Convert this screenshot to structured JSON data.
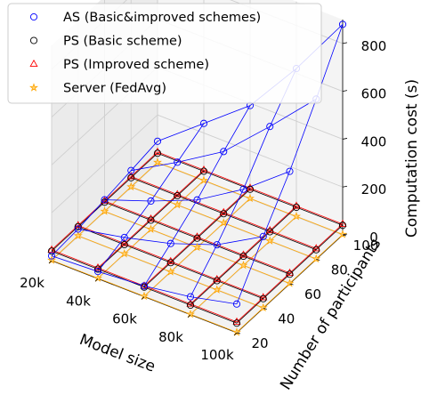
{
  "chart_data": {
    "type": "scatter",
    "projection": "3d",
    "title": "",
    "xlabel": "Model size",
    "ylabel": "Number of participants",
    "zlabel": "Computation cost (s)",
    "x": [
      20000,
      40000,
      60000,
      80000,
      100000
    ],
    "x_tick_labels": [
      "20k",
      "40k",
      "60k",
      "80k",
      "100k"
    ],
    "y": [
      20,
      40,
      60,
      80,
      100
    ],
    "y_tick_labels": [
      "20",
      "40",
      "60",
      "80",
      "100"
    ],
    "z_ticks": [
      0,
      200,
      400,
      600,
      800
    ],
    "z_tick_labels": [
      "0",
      "200",
      "400",
      "600",
      "800"
    ],
    "xlim": [
      20000,
      100000
    ],
    "ylim": [
      20,
      100
    ],
    "zlim": [
      0,
      900
    ],
    "grid": true,
    "legend_position": "top-left",
    "series": [
      {
        "name": "AS (Basic&improved schemes)",
        "marker": "circle-open",
        "color": "#0000ff",
        "values": [
          [
            20,
            30,
            45,
            75,
            120
          ],
          [
            30,
            70,
            120,
            190,
            300
          ],
          [
            50,
            120,
            200,
            320,
            470
          ],
          [
            70,
            180,
            300,
            480,
            670
          ],
          [
            90,
            240,
            390,
            620,
            880
          ]
        ]
      },
      {
        "name": "PS (Basic scheme)",
        "marker": "circle-open",
        "color": "#000000",
        "values": [
          [
            40,
            40,
            40,
            40,
            40
          ],
          [
            40,
            40,
            40,
            40,
            40
          ],
          [
            40,
            40,
            40,
            40,
            40
          ],
          [
            40,
            40,
            40,
            40,
            40
          ],
          [
            40,
            40,
            40,
            40,
            40
          ]
        ]
      },
      {
        "name": "PS (Improved scheme)",
        "marker": "triangle-open",
        "color": "#ff0000",
        "values": [
          [
            45,
            45,
            45,
            45,
            45
          ],
          [
            45,
            45,
            45,
            45,
            45
          ],
          [
            45,
            45,
            45,
            45,
            45
          ],
          [
            45,
            45,
            45,
            45,
            45
          ],
          [
            45,
            45,
            45,
            45,
            45
          ]
        ]
      },
      {
        "name": "Server (FedAvg)",
        "marker": "star",
        "color": "#ffa500",
        "values": [
          [
            2,
            2,
            2,
            2,
            2
          ],
          [
            2,
            2,
            2,
            2,
            2
          ],
          [
            2,
            2,
            2,
            2,
            2
          ],
          [
            2,
            2,
            2,
            2,
            2
          ],
          [
            2,
            2,
            2,
            2,
            2
          ]
        ]
      }
    ]
  }
}
